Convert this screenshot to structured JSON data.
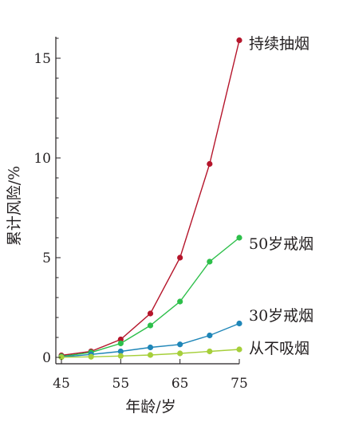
{
  "chart_data": {
    "type": "line",
    "xlabel": "年龄/岁",
    "ylabel": "累计风险/%",
    "xlim": [
      45,
      75
    ],
    "ylim": [
      0,
      16
    ],
    "xticks": [
      45,
      55,
      65,
      75
    ],
    "yticks": [
      0,
      5,
      10,
      15
    ],
    "x": [
      45,
      50,
      55,
      60,
      65,
      70,
      75
    ],
    "grid": false,
    "series": [
      {
        "name": "持续抽烟",
        "color": "#b5152b",
        "values": [
          0.1,
          0.3,
          0.9,
          2.2,
          5.0,
          9.7,
          15.9
        ]
      },
      {
        "name": "50岁戒烟",
        "color": "#2dbf4a",
        "values": [
          0.05,
          0.25,
          0.7,
          1.6,
          2.8,
          4.8,
          6.0
        ]
      },
      {
        "name": "30岁戒烟",
        "color": "#1f86b8",
        "values": [
          0.02,
          0.15,
          0.3,
          0.5,
          0.65,
          1.1,
          1.7
        ]
      },
      {
        "name": "从不吸烟",
        "color": "#a6cf3a",
        "values": [
          0.01,
          0.03,
          0.07,
          0.12,
          0.2,
          0.3,
          0.4
        ]
      }
    ]
  }
}
